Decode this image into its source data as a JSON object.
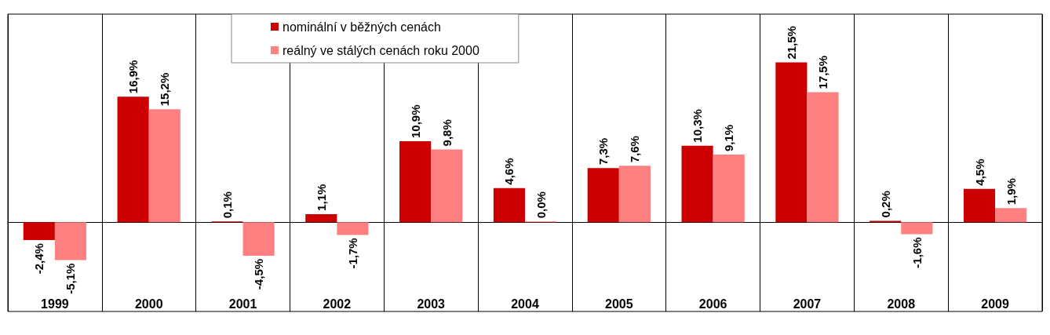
{
  "chart_data": {
    "type": "bar",
    "categories": [
      "1999",
      "2000",
      "2001",
      "2002",
      "2003",
      "2004",
      "2005",
      "2006",
      "2007",
      "2008",
      "2009"
    ],
    "series": [
      {
        "name": "nominální v běžných cenách",
        "color": "#cc0000",
        "values": [
          -2.4,
          16.9,
          0.1,
          1.1,
          10.9,
          4.6,
          7.3,
          10.3,
          21.5,
          0.2,
          4.5
        ],
        "value_labels": [
          "-2,4%",
          "16,9%",
          "0,1%",
          "1,1%",
          "10,9%",
          "4,6%",
          "7,3%",
          "10,3%",
          "21,5%",
          "0,2%",
          "4,5%"
        ]
      },
      {
        "name": "reálný ve stálých cenách roku 2000",
        "color": "#ff8080",
        "values": [
          -5.1,
          15.2,
          -4.5,
          -1.7,
          9.8,
          0.0,
          7.6,
          9.1,
          17.5,
          -1.6,
          1.9
        ],
        "value_labels": [
          "-5,1%",
          "15,2%",
          "-4,5%",
          "-1,7%",
          "9,8%",
          "0,0%",
          "7,6%",
          "9,1%",
          "17,5%",
          "-1,6%",
          "1,9%"
        ]
      }
    ],
    "legend": "top",
    "grid": "x",
    "tick_labels": "x"
  }
}
